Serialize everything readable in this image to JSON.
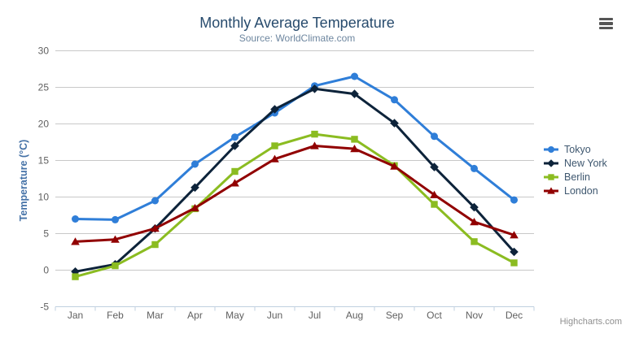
{
  "chart": {
    "title": "Monthly Average Temperature",
    "subtitle": "Source: WorldClimate.com",
    "credits": "Highcharts.com",
    "export_menu_icon": "hamburger-icon",
    "y_axis": {
      "title": "Temperature (°C)"
    },
    "colors": {
      "title": "#274b6d",
      "subtitle": "#6d869f",
      "y_axis_title": "#4572a7",
      "axis_labels": "#606060",
      "grid_line": "#c8c8c8",
      "axis_line": "#c0d0e0",
      "legend_text": "#3e576f",
      "credits_text": "#8f8f8f",
      "export_icon": "#555555",
      "background": "#ffffff"
    }
  },
  "chart_data": {
    "type": "line",
    "title": "Monthly Average Temperature",
    "subtitle": "Source: WorldClimate.com",
    "xlabel": "",
    "ylabel": "Temperature (°C)",
    "categories": [
      "Jan",
      "Feb",
      "Mar",
      "Apr",
      "May",
      "Jun",
      "Jul",
      "Aug",
      "Sep",
      "Oct",
      "Nov",
      "Dec"
    ],
    "ylim": [
      -5,
      30
    ],
    "y_ticks": [
      -5,
      0,
      5,
      10,
      15,
      20,
      25,
      30
    ],
    "grid": true,
    "legend_position": "right",
    "series": [
      {
        "name": "Tokyo",
        "color": "#2f7ed8",
        "marker": "circle",
        "values": [
          7.0,
          6.9,
          9.5,
          14.5,
          18.2,
          21.5,
          25.2,
          26.5,
          23.3,
          18.3,
          13.9,
          9.6
        ]
      },
      {
        "name": "New York",
        "color": "#0d233a",
        "marker": "diamond",
        "values": [
          -0.2,
          0.8,
          5.7,
          11.3,
          17.0,
          22.0,
          24.8,
          24.1,
          20.1,
          14.1,
          8.6,
          2.5
        ]
      },
      {
        "name": "Berlin",
        "color": "#8bbc21",
        "marker": "square",
        "values": [
          -0.9,
          0.6,
          3.5,
          8.4,
          13.5,
          17.0,
          18.6,
          17.9,
          14.3,
          9.0,
          3.9,
          1.0
        ]
      },
      {
        "name": "London",
        "color": "#910000",
        "marker": "triangle",
        "values": [
          3.9,
          4.2,
          5.7,
          8.5,
          11.9,
          15.2,
          17.0,
          16.6,
          14.2,
          10.3,
          6.6,
          4.8
        ]
      }
    ]
  }
}
